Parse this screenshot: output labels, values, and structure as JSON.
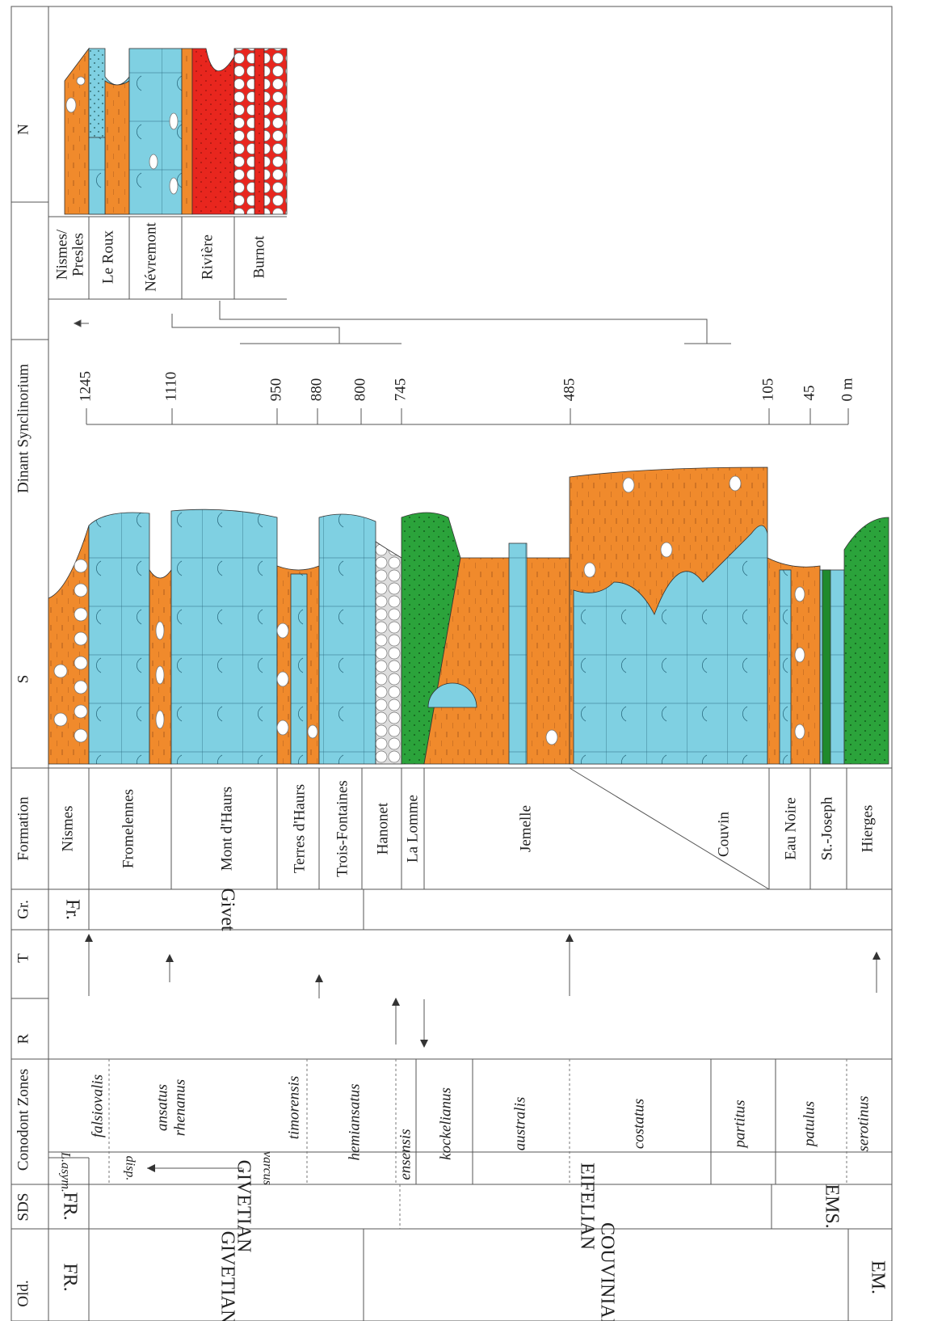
{
  "headers": {
    "old": "Old.",
    "sds": "SDS",
    "conodont": "Conodont Zones",
    "r": "R",
    "t": "T",
    "gr": "Gr.",
    "formation": "Formation",
    "s": "S",
    "dinant": "Dinant Synclinorium",
    "n": "N"
  },
  "old_stages": [
    "FR.",
    "GIVETIAN",
    "COUVINIAN",
    "EM."
  ],
  "sds_stages": [
    "FR.",
    "GIVETIAN",
    "EIFELIAN",
    "EMS."
  ],
  "conodont_zones": [
    "falsiovalis",
    "ansatus",
    "rhenanus",
    "timorensis",
    "hemiansatus",
    "ensensis",
    "kockelianus",
    "australis",
    "costatus",
    "partitus",
    "patulus",
    "serotinus"
  ],
  "conodont_subzones": [
    "L.asym.",
    "varcus",
    "disp."
  ],
  "groups": [
    "Fr.",
    "Givet"
  ],
  "formations": [
    "Nismes",
    "Fromelennes",
    "Mont d'Haurs",
    "Terres d'Haurs",
    "Trois-Fontaines",
    "Hanonet",
    "La Lomme",
    "Jemelle",
    "Couvin",
    "Eau Noire",
    "St.-Joseph",
    "Hierges"
  ],
  "thickness_ticks": [
    1245,
    1110,
    950,
    880,
    800,
    745,
    485,
    105,
    45,
    {
      "value": 0,
      "label": "0 m"
    }
  ],
  "north_formations": [
    [
      "Nismes/",
      "Presles"
    ],
    [
      "Le Roux"
    ],
    [
      "Névremont"
    ],
    [
      "Rivière"
    ],
    [
      "Burnot"
    ]
  ]
}
